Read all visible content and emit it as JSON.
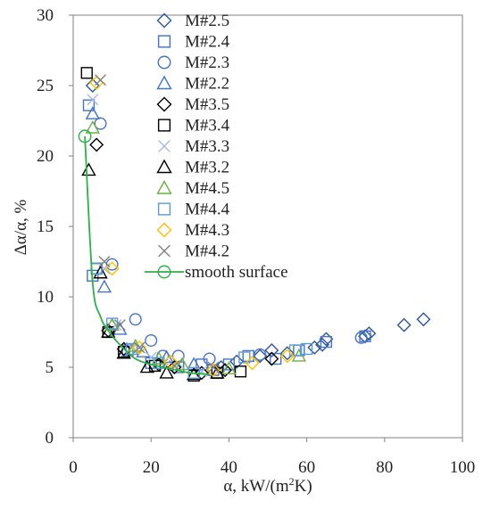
{
  "chart_data": {
    "type": "scatter",
    "title": "",
    "xlabel_main": "α, kW/(m",
    "xlabel_sup": "2",
    "xlabel_tail": "K)",
    "ylabel": "Δα/α, %",
    "xlim": [
      0,
      100
    ],
    "ylim": [
      0,
      30
    ],
    "xticks": [
      0,
      20,
      40,
      60,
      80,
      100
    ],
    "yticks": [
      0,
      5,
      10,
      15,
      20,
      25,
      30
    ],
    "grid": false,
    "legend_position": "top-center",
    "series": [
      {
        "name": "M#2.5",
        "marker": "diamond",
        "color": "#2F5597",
        "x": [
          5,
          38,
          42,
          48,
          51,
          55,
          62,
          64,
          65,
          75,
          76,
          85,
          90
        ],
        "y": [
          25,
          5.0,
          5.4,
          5.8,
          6.2,
          6.0,
          6.4,
          6.6,
          7.0,
          7.2,
          7.4,
          8.0,
          8.4
        ]
      },
      {
        "name": "M#2.4",
        "marker": "square",
        "color": "#4472C4",
        "x": [
          4,
          5,
          6,
          14,
          20,
          27,
          33,
          36,
          40,
          45,
          52,
          58,
          65,
          75
        ],
        "y": [
          23.6,
          11.5,
          12.0,
          6.2,
          5.3,
          5.0,
          5.2,
          4.8,
          5.2,
          5.8,
          5.6,
          6.2,
          6.8,
          7.2
        ]
      },
      {
        "name": "M#2.3",
        "marker": "circle",
        "color": "#4472C4",
        "x": [
          7,
          10,
          16,
          20,
          23,
          27,
          35,
          48,
          74
        ],
        "y": [
          22.3,
          12.3,
          8.4,
          6.9,
          5.8,
          5.8,
          5.6,
          5.9,
          7.1
        ]
      },
      {
        "name": "M#2.2",
        "marker": "triangle",
        "color": "#4472C4",
        "x": [
          5,
          8,
          12,
          18,
          24,
          31
        ],
        "y": [
          23,
          10.7,
          7.7,
          6.1,
          5.7,
          5.2
        ]
      },
      {
        "name": "M#3.5",
        "marker": "diamond",
        "color": "#000000",
        "x": [
          6,
          9,
          13,
          22,
          26,
          33,
          39,
          51
        ],
        "y": [
          20.8,
          7.6,
          6.3,
          5.2,
          5.0,
          4.6,
          4.8,
          5.6
        ]
      },
      {
        "name": "M#3.4",
        "marker": "square",
        "color": "#000000",
        "x": [
          3.5,
          6,
          9,
          13,
          21,
          31,
          37,
          43
        ],
        "y": [
          25.9,
          12.0,
          7.5,
          6.1,
          5.1,
          4.4,
          4.6,
          4.7
        ]
      },
      {
        "name": "M#3.3",
        "marker": "x",
        "color": "#A9B9E0",
        "x": [
          5,
          8,
          11,
          15,
          20,
          27,
          33
        ],
        "y": [
          24.0,
          12.0,
          8.0,
          6.4,
          5.7,
          5.3,
          4.7
        ]
      },
      {
        "name": "M#3.2",
        "marker": "triangle",
        "color": "#000000",
        "x": [
          4,
          7,
          9,
          13,
          19,
          24,
          31,
          37
        ],
        "y": [
          19.0,
          11.7,
          7.5,
          6.0,
          5.0,
          4.6,
          4.5,
          4.6
        ]
      },
      {
        "name": "M#4.5",
        "marker": "triangle",
        "color": "#70AD47",
        "x": [
          5,
          10,
          16,
          22,
          28,
          40,
          58
        ],
        "y": [
          22.0,
          8.0,
          6.5,
          5.6,
          5.2,
          4.9,
          5.8
        ]
      },
      {
        "name": "M#4.4",
        "marker": "square",
        "color": "#5B9BD5",
        "x": [
          6,
          10,
          15,
          22,
          31,
          44,
          57,
          60
        ],
        "y": [
          12.0,
          8.1,
          6.3,
          5.3,
          4.6,
          5.7,
          6.2,
          6.3
        ]
      },
      {
        "name": "M#4.3",
        "marker": "diamond",
        "color": "#FFC000",
        "x": [
          6,
          10,
          17,
          25,
          36,
          46,
          55
        ],
        "y": [
          25.2,
          12.0,
          6.4,
          5.4,
          4.8,
          5.3,
          5.8
        ]
      },
      {
        "name": "M#4.2",
        "marker": "x",
        "color": "#7F7F7F",
        "x": [
          7,
          8,
          12,
          17,
          26,
          36
        ],
        "y": [
          25.4,
          12.5,
          8.0,
          6.4,
          5.1,
          5.0
        ]
      },
      {
        "name": "smooth surface",
        "marker": "circle",
        "color": "#2EAF4A",
        "line": true,
        "x": [
          3,
          5,
          7,
          9,
          12,
          16,
          20,
          25,
          30,
          35
        ],
        "y": [
          21.4,
          11.0,
          8.6,
          7.6,
          6.6,
          5.6,
          5.2,
          4.9,
          4.6,
          4.5
        ]
      }
    ]
  }
}
